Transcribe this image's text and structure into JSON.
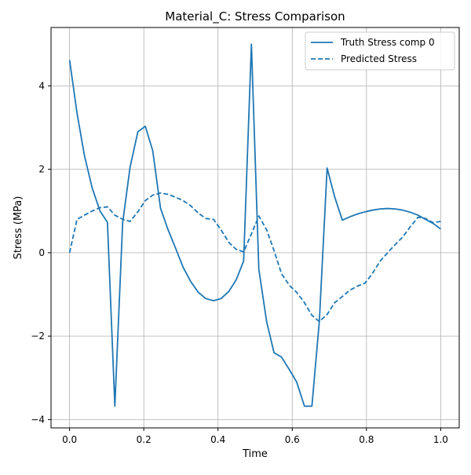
{
  "chart_data": {
    "type": "line",
    "title": "Material_C: Stress Comparison",
    "xlabel": "Time",
    "ylabel": "Stress (MPa)",
    "xlim": [
      -0.05,
      1.05
    ],
    "ylim": [
      -4.2,
      5.4
    ],
    "xticks": [
      0.0,
      0.2,
      0.4,
      0.6,
      0.8,
      1.0
    ],
    "xtick_labels": [
      "0.0",
      "0.2",
      "0.4",
      "0.6",
      "0.8",
      "1.0"
    ],
    "yticks": [
      -4,
      -2,
      0,
      2,
      4
    ],
    "ytick_labels": [
      "−4",
      "−2",
      "0",
      "2",
      "4"
    ],
    "grid": true,
    "legend_position": "top-right",
    "color": "#1f77b4",
    "series": [
      {
        "name": "Truth Stress comp 0",
        "style": "solid",
        "x": [
          0.0,
          0.02,
          0.04,
          0.061,
          0.082,
          0.102,
          0.122,
          0.143,
          0.163,
          0.184,
          0.204,
          0.224,
          0.245,
          0.265,
          0.286,
          0.306,
          0.327,
          0.347,
          0.367,
          0.388,
          0.408,
          0.429,
          0.449,
          0.469,
          0.49,
          0.51,
          0.531,
          0.551,
          0.571,
          0.592,
          0.612,
          0.633,
          0.653,
          0.673,
          0.694,
          0.714,
          0.735,
          0.755,
          0.776,
          0.796,
          0.816,
          0.837,
          0.857,
          0.878,
          0.898,
          0.918,
          0.939,
          0.959,
          0.98,
          1.0
        ],
        "values": [
          4.62,
          3.35,
          2.33,
          1.55,
          1.0,
          0.73,
          -3.68,
          0.72,
          2.05,
          2.9,
          3.03,
          2.45,
          1.07,
          0.56,
          0.1,
          -0.35,
          -0.7,
          -0.95,
          -1.1,
          -1.15,
          -1.1,
          -0.93,
          -0.65,
          -0.2,
          5.0,
          -0.4,
          -1.65,
          -2.4,
          -2.5,
          -2.8,
          -3.1,
          -3.68,
          -3.68,
          -1.65,
          2.03,
          1.35,
          0.78,
          0.86,
          0.93,
          0.98,
          1.02,
          1.05,
          1.06,
          1.05,
          1.02,
          0.97,
          0.9,
          0.8,
          0.7,
          0.57
        ]
      },
      {
        "name": "Predicted Stress",
        "style": "dashed",
        "x": [
          0.0,
          0.02,
          0.04,
          0.061,
          0.082,
          0.102,
          0.122,
          0.143,
          0.163,
          0.184,
          0.204,
          0.224,
          0.245,
          0.265,
          0.286,
          0.306,
          0.327,
          0.347,
          0.367,
          0.388,
          0.408,
          0.429,
          0.449,
          0.469,
          0.49,
          0.51,
          0.531,
          0.551,
          0.571,
          0.592,
          0.612,
          0.633,
          0.653,
          0.673,
          0.694,
          0.714,
          0.735,
          0.755,
          0.776,
          0.796,
          0.816,
          0.837,
          0.857,
          0.878,
          0.898,
          0.918,
          0.939,
          0.959,
          0.98,
          1.0
        ],
        "values": [
          0.0,
          0.8,
          0.9,
          1.0,
          1.08,
          1.1,
          0.9,
          0.8,
          0.75,
          0.98,
          1.25,
          1.38,
          1.43,
          1.4,
          1.33,
          1.25,
          1.12,
          0.95,
          0.82,
          0.8,
          0.55,
          0.25,
          0.08,
          0.02,
          0.45,
          0.88,
          0.55,
          0.05,
          -0.5,
          -0.78,
          -0.95,
          -1.2,
          -1.5,
          -1.65,
          -1.48,
          -1.2,
          -1.05,
          -0.9,
          -0.8,
          -0.73,
          -0.5,
          -0.2,
          0.0,
          0.2,
          0.38,
          0.62,
          0.85,
          0.82,
          0.72,
          0.75
        ]
      }
    ]
  }
}
